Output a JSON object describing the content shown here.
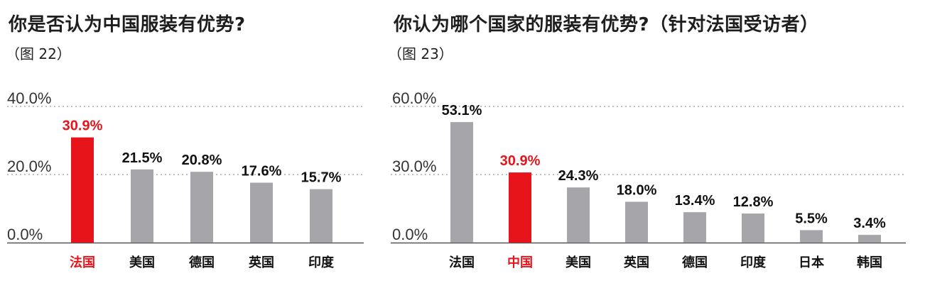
{
  "chart_data": [
    {
      "type": "bar",
      "title": "你是否认为中国服装有优势?",
      "subtitle": "（图 22）",
      "categories": [
        "法国",
        "美国",
        "德国",
        "英国",
        "印度"
      ],
      "values": [
        30.9,
        21.5,
        20.8,
        17.6,
        15.7
      ],
      "value_labels": [
        "30.9%",
        "21.5%",
        "20.8%",
        "17.6%",
        "15.7%"
      ],
      "yticks": [
        "0.0%",
        "20.0%",
        "40.0%"
      ],
      "ytick_values": [
        0,
        20,
        40
      ],
      "ylim": [
        0,
        40
      ],
      "highlight": "法国",
      "grid": true
    },
    {
      "type": "bar",
      "title": "你认为哪个国家的服装有优势?（针对法国受访者）",
      "subtitle": "（图 23）",
      "categories": [
        "法国",
        "中国",
        "美国",
        "英国",
        "德国",
        "印度",
        "日本",
        "韩国"
      ],
      "values": [
        53.1,
        30.9,
        24.3,
        18.0,
        13.4,
        12.8,
        5.5,
        3.4
      ],
      "value_labels": [
        "53.1%",
        "30.9%",
        "24.3%",
        "18.0%",
        "13.4%",
        "12.8%",
        "5.5%",
        "3.4%"
      ],
      "yticks": [
        "0.0%",
        "30.0%",
        "60.0%"
      ],
      "ytick_values": [
        0,
        30,
        60
      ],
      "ylim": [
        0,
        60
      ],
      "highlight": "中国",
      "grid": true
    }
  ],
  "colors": {
    "bar": "#a6a6aa",
    "highlight": "#e8141b",
    "grid": "#9a9a9a",
    "baseline": "#555555"
  }
}
